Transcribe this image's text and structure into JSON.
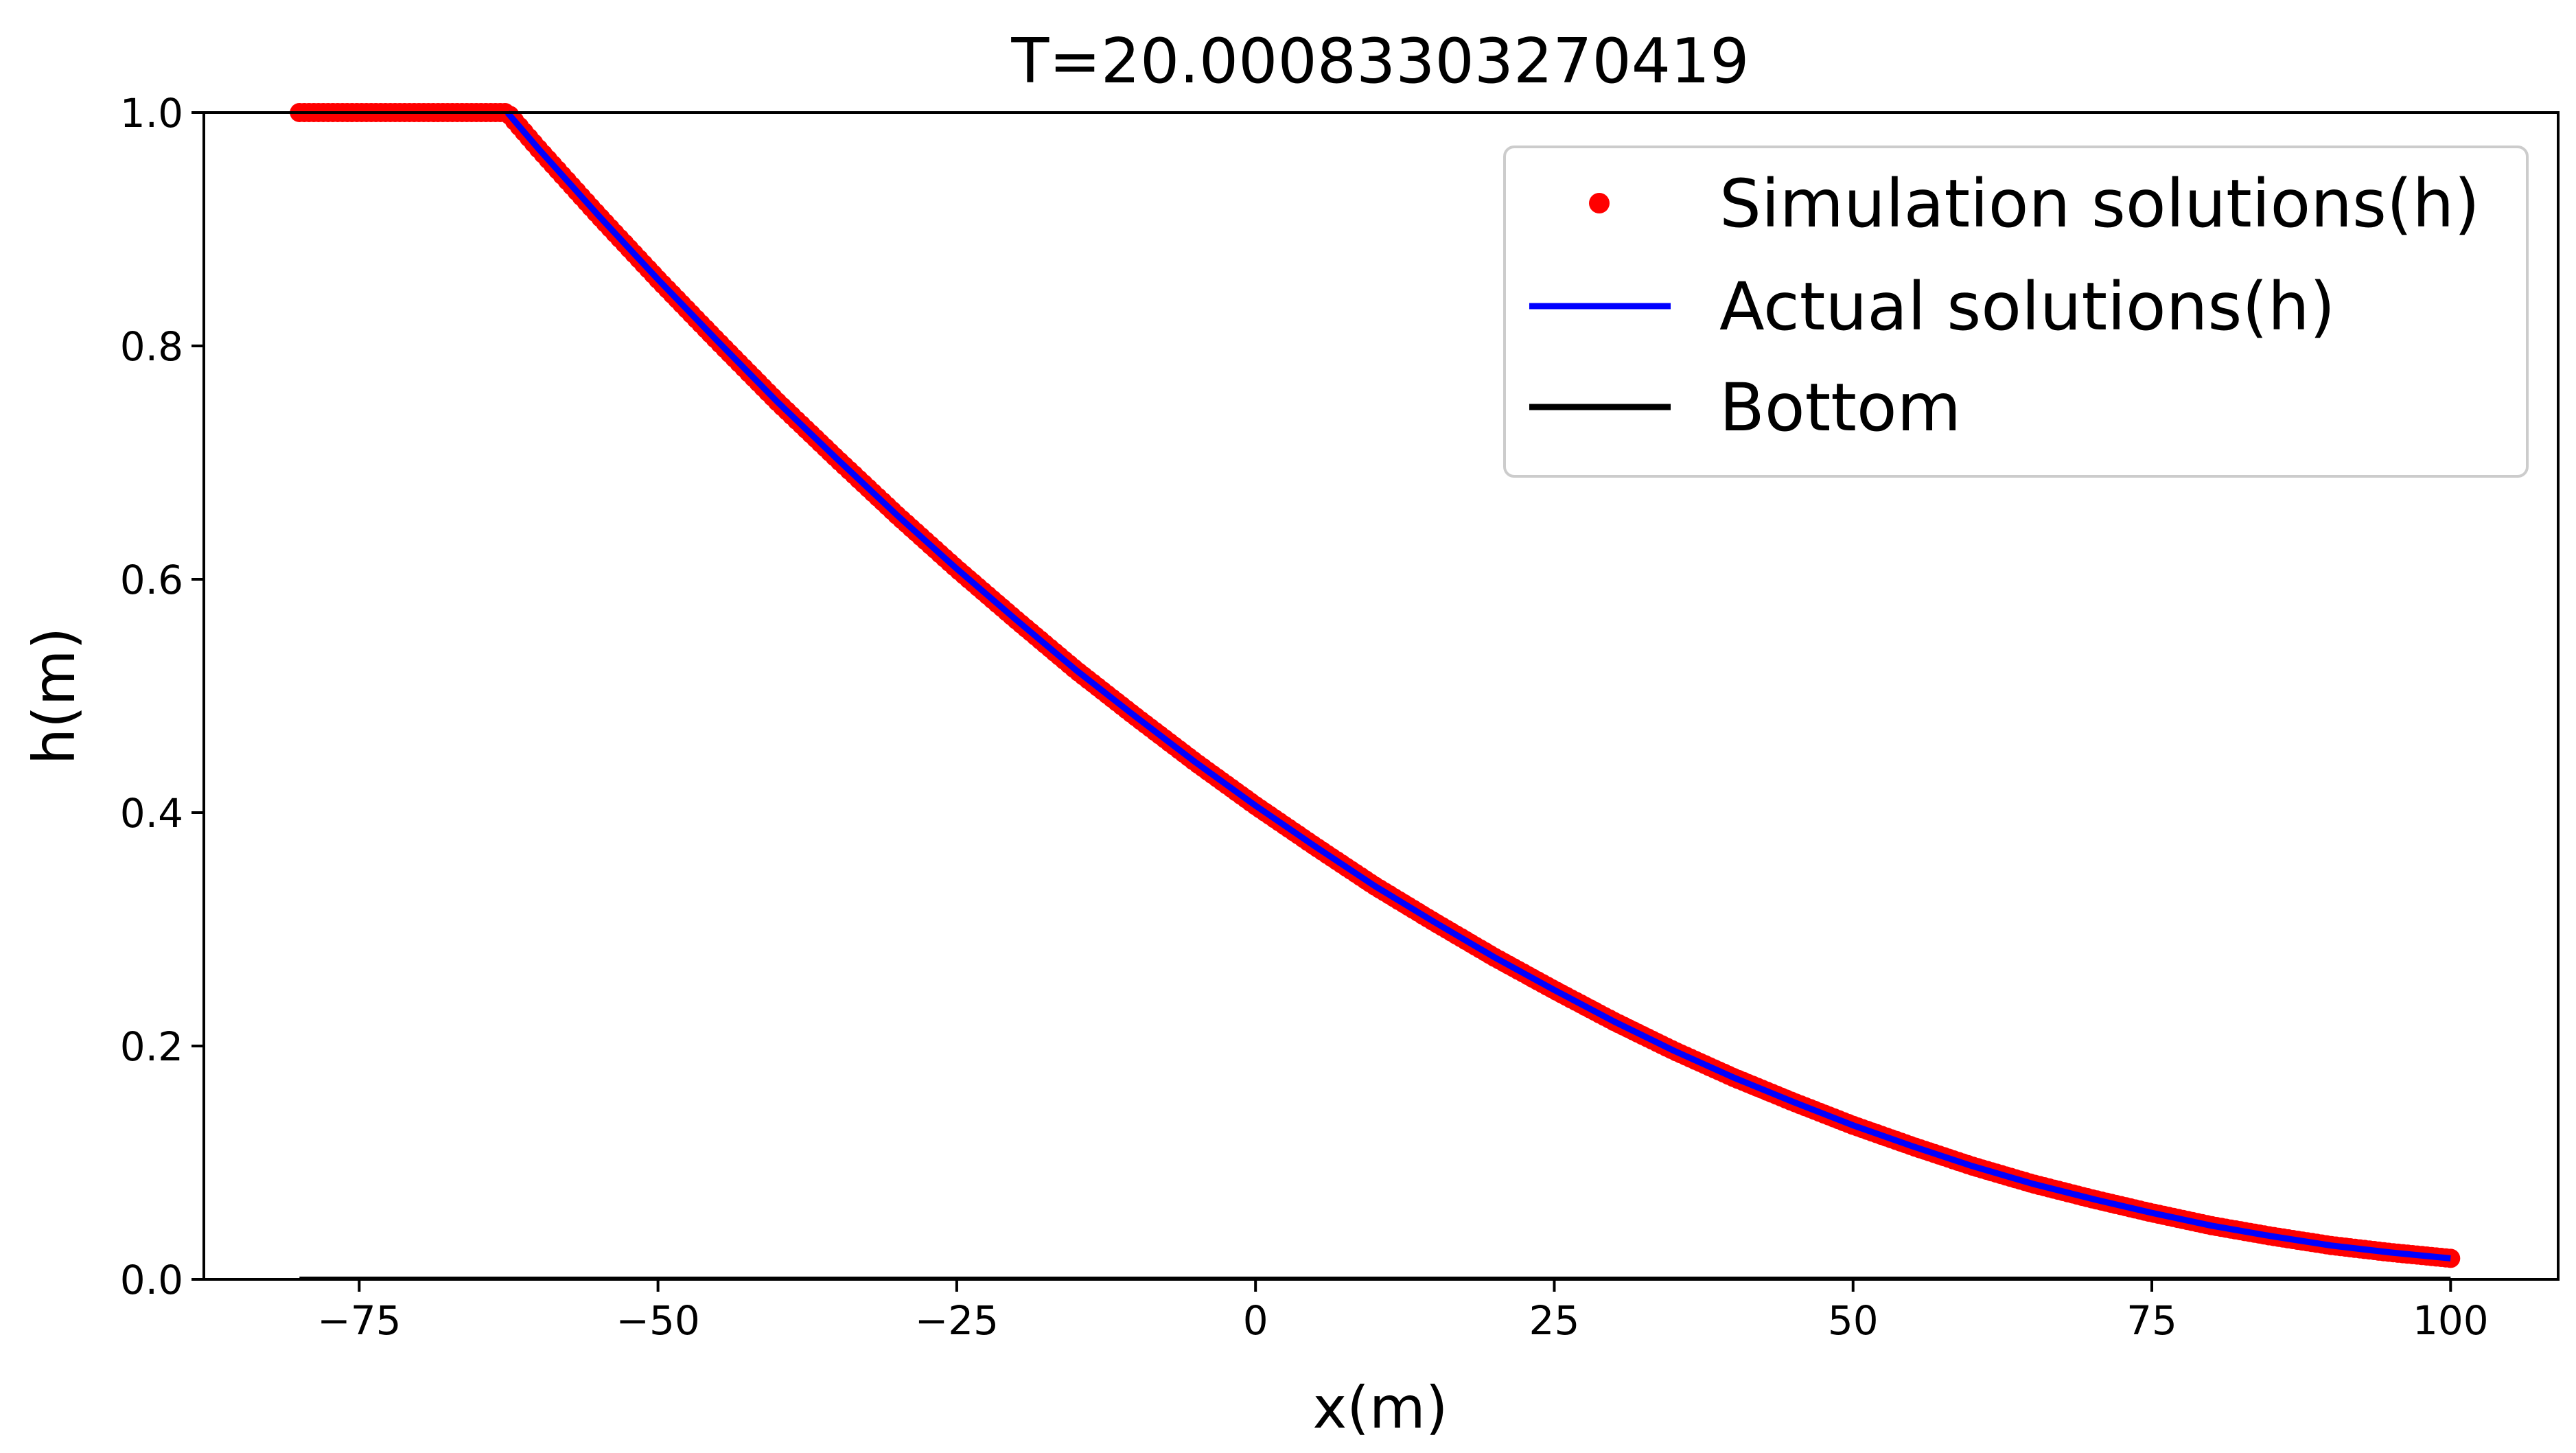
{
  "chart_data": {
    "type": "line",
    "title": "T=20.00083303270419",
    "xlabel": "x(m)",
    "ylabel": "h(m)",
    "xlim": [
      -88,
      109
    ],
    "ylim": [
      0.0,
      1.0
    ],
    "x_ticks": [
      -75,
      -50,
      -25,
      0,
      25,
      50,
      75,
      100
    ],
    "x_tick_labels": [
      "−75",
      "−50",
      "−25",
      "0",
      "25",
      "50",
      "75",
      "100"
    ],
    "y_ticks": [
      0.0,
      0.2,
      0.4,
      0.6,
      0.8,
      1.0
    ],
    "y_tick_labels": [
      "0.0",
      "0.2",
      "0.4",
      "0.6",
      "0.8",
      "1.0"
    ],
    "grid": false,
    "legend_position": "top-right",
    "series": [
      {
        "name": "Simulation solutions(h)",
        "kind": "scatter",
        "color": "#ff0000",
        "x": [
          -80,
          -75,
          -70,
          -65,
          -62.6,
          -60,
          -55,
          -50,
          -45,
          -40,
          -35,
          -30,
          -25,
          -20,
          -15,
          -10,
          -5,
          0,
          5,
          10,
          15,
          20,
          25,
          30,
          35,
          40,
          45,
          50,
          55,
          60,
          65,
          70,
          75,
          80,
          85,
          90,
          95,
          100
        ],
        "y": [
          1.0,
          1.0,
          1.0,
          1.0,
          1.0,
          0.969,
          0.912,
          0.857,
          0.804,
          0.752,
          0.703,
          0.655,
          0.609,
          0.565,
          0.522,
          0.482,
          0.443,
          0.406,
          0.371,
          0.337,
          0.306,
          0.276,
          0.248,
          0.221,
          0.196,
          0.173,
          0.152,
          0.132,
          0.114,
          0.097,
          0.082,
          0.069,
          0.057,
          0.046,
          0.037,
          0.029,
          0.023,
          0.018
        ]
      },
      {
        "name": "Actual solutions(h)",
        "kind": "line",
        "color": "#0000ff",
        "x": [
          -62.6,
          -60,
          -55,
          -50,
          -45,
          -40,
          -35,
          -30,
          -25,
          -20,
          -15,
          -10,
          -5,
          0,
          5,
          10,
          15,
          20,
          25,
          30,
          35,
          40,
          45,
          50,
          55,
          60,
          65,
          70,
          75,
          80,
          85,
          90,
          95,
          100
        ],
        "y": [
          1.0,
          0.969,
          0.912,
          0.857,
          0.804,
          0.752,
          0.703,
          0.655,
          0.609,
          0.565,
          0.522,
          0.482,
          0.443,
          0.406,
          0.371,
          0.337,
          0.306,
          0.276,
          0.248,
          0.221,
          0.196,
          0.173,
          0.152,
          0.132,
          0.114,
          0.097,
          0.082,
          0.069,
          0.057,
          0.046,
          0.037,
          0.029,
          0.023,
          0.018
        ]
      },
      {
        "name": "Bottom",
        "kind": "line",
        "color": "#000000",
        "x": [
          -80,
          100
        ],
        "y": [
          0.0,
          0.0
        ]
      }
    ]
  }
}
